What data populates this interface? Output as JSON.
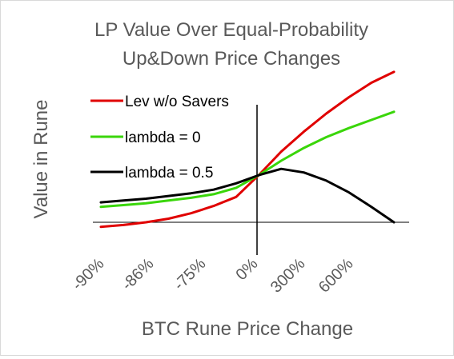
{
  "chart_data": {
    "type": "line",
    "title": [
      "LP Value Over Equal-Probability",
      "Up&Down Price Changes"
    ],
    "xlabel": "BTC Rune Price Change",
    "ylabel": "Value in Rune",
    "x_tick_labels": [
      "-90%",
      "-86%",
      "-75%",
      "0%",
      "300%",
      "600%"
    ],
    "grid": false,
    "legend_position": "top-left",
    "series": [
      {
        "name": "Lev w/o Savers",
        "color": "#e00000",
        "values": [
          -0.05,
          -0.03,
          0,
          0.04,
          0.1,
          0.18,
          0.28,
          0.52,
          0.78,
          1.0,
          1.2,
          1.38,
          1.54,
          1.66
        ]
      },
      {
        "name": "lambda = 0",
        "color": "#3ad60a",
        "values": [
          0.17,
          0.19,
          0.21,
          0.24,
          0.27,
          0.31,
          0.38,
          0.52,
          0.68,
          0.82,
          0.94,
          1.04,
          1.13,
          1.22
        ]
      },
      {
        "name": "lambda = 0.5",
        "color": "#000000",
        "values": [
          0.22,
          0.24,
          0.26,
          0.29,
          0.32,
          0.36,
          0.43,
          0.52,
          0.59,
          0.55,
          0.46,
          0.33,
          0.17,
          0.0
        ]
      }
    ]
  }
}
